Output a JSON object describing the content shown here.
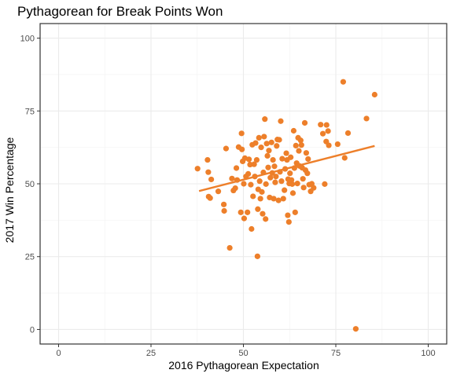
{
  "chart_data": {
    "type": "scatter",
    "title": "Pythagorean for Break Points Won",
    "xlabel": "2016 Pythagorean Expectation",
    "ylabel": "2017 Win Percentage",
    "xlim": [
      -5,
      105
    ],
    "ylim": [
      -5,
      105
    ],
    "xticks": [
      0,
      25,
      50,
      75,
      100
    ],
    "yticks": [
      0,
      25,
      50,
      75,
      100
    ],
    "grid": true,
    "point_color": "#ED7F2A",
    "trend_line": {
      "x": [
        38,
        85.5
      ],
      "y": [
        47.5,
        63
      ]
    },
    "points": [
      [
        37.6,
        55.2
      ],
      [
        40.3,
        58.2
      ],
      [
        40.5,
        54.0
      ],
      [
        40.6,
        45.6
      ],
      [
        41.0,
        45.1
      ],
      [
        41.3,
        51.5
      ],
      [
        43.2,
        47.4
      ],
      [
        44.7,
        42.9
      ],
      [
        44.8,
        40.7
      ],
      [
        45.3,
        62.1
      ],
      [
        46.3,
        28.0
      ],
      [
        46.9,
        51.8
      ],
      [
        47.3,
        47.7
      ],
      [
        47.8,
        48.5
      ],
      [
        48.1,
        55.4
      ],
      [
        48.3,
        51.3
      ],
      [
        48.7,
        62.6
      ],
      [
        49.3,
        40.2
      ],
      [
        49.5,
        67.3
      ],
      [
        49.6,
        61.8
      ],
      [
        49.8,
        57.7
      ],
      [
        50.1,
        50.0
      ],
      [
        50.2,
        38.1
      ],
      [
        50.4,
        58.8
      ],
      [
        50.7,
        52.5
      ],
      [
        51.1,
        40.2
      ],
      [
        51.3,
        53.4
      ],
      [
        51.5,
        58.4
      ],
      [
        51.8,
        56.6
      ],
      [
        52.0,
        49.7
      ],
      [
        52.2,
        34.5
      ],
      [
        52.4,
        63.4
      ],
      [
        52.6,
        45.7
      ],
      [
        52.9,
        56.7
      ],
      [
        53.1,
        52.5
      ],
      [
        53.3,
        64.0
      ],
      [
        53.6,
        58.2
      ],
      [
        53.8,
        25.1
      ],
      [
        53.9,
        41.3
      ],
      [
        54.0,
        48.1
      ],
      [
        54.2,
        65.8
      ],
      [
        54.4,
        50.9
      ],
      [
        54.6,
        44.9
      ],
      [
        54.8,
        62.5
      ],
      [
        55.0,
        47.2
      ],
      [
        55.2,
        39.7
      ],
      [
        55.4,
        53.9
      ],
      [
        55.6,
        66.2
      ],
      [
        55.8,
        72.2
      ],
      [
        56.0,
        37.9
      ],
      [
        56.1,
        49.9
      ],
      [
        56.3,
        63.8
      ],
      [
        56.5,
        59.6
      ],
      [
        56.7,
        55.6
      ],
      [
        56.9,
        61.4
      ],
      [
        57.1,
        45.3
      ],
      [
        57.3,
        52.1
      ],
      [
        57.6,
        64.2
      ],
      [
        57.8,
        53.7
      ],
      [
        58.0,
        58.2
      ],
      [
        58.2,
        44.9
      ],
      [
        58.4,
        56.0
      ],
      [
        58.6,
        50.5
      ],
      [
        58.8,
        52.5
      ],
      [
        59.0,
        63.0
      ],
      [
        59.2,
        65.2
      ],
      [
        59.5,
        44.3
      ],
      [
        59.7,
        65.1
      ],
      [
        59.9,
        54.1
      ],
      [
        60.1,
        71.5
      ],
      [
        60.3,
        50.9
      ],
      [
        60.5,
        58.6
      ],
      [
        60.8,
        44.9
      ],
      [
        61.1,
        47.8
      ],
      [
        61.3,
        55.1
      ],
      [
        61.6,
        60.5
      ],
      [
        61.8,
        58.2
      ],
      [
        62.0,
        39.2
      ],
      [
        62.1,
        51.6
      ],
      [
        62.3,
        36.9
      ],
      [
        62.4,
        50.1
      ],
      [
        62.6,
        53.6
      ],
      [
        62.8,
        59.1
      ],
      [
        63.0,
        51.3
      ],
      [
        63.2,
        49.9
      ],
      [
        63.4,
        46.8
      ],
      [
        63.6,
        68.2
      ],
      [
        63.8,
        55.4
      ],
      [
        64.0,
        40.2
      ],
      [
        64.2,
        63.1
      ],
      [
        64.4,
        57.1
      ],
      [
        64.6,
        50.1
      ],
      [
        64.8,
        65.8
      ],
      [
        65.0,
        61.3
      ],
      [
        65.2,
        56.1
      ],
      [
        65.5,
        64.9
      ],
      [
        65.7,
        63.3
      ],
      [
        65.9,
        55.5
      ],
      [
        66.1,
        51.7
      ],
      [
        66.3,
        48.7
      ],
      [
        66.6,
        70.9
      ],
      [
        66.8,
        54.7
      ],
      [
        67.0,
        60.6
      ],
      [
        67.3,
        53.6
      ],
      [
        67.5,
        58.5
      ],
      [
        67.8,
        49.7
      ],
      [
        68.2,
        47.4
      ],
      [
        68.5,
        50.0
      ],
      [
        69.0,
        48.6
      ],
      [
        70.9,
        70.3
      ],
      [
        71.5,
        67.2
      ],
      [
        72.0,
        49.9
      ],
      [
        72.4,
        64.5
      ],
      [
        72.5,
        70.2
      ],
      [
        72.9,
        68.1
      ],
      [
        73.1,
        63.2
      ],
      [
        75.5,
        63.6
      ],
      [
        77.0,
        85.0
      ],
      [
        77.4,
        58.9
      ],
      [
        78.3,
        67.4
      ],
      [
        80.4,
        0.2
      ],
      [
        83.3,
        72.4
      ],
      [
        85.5,
        80.6
      ]
    ]
  }
}
